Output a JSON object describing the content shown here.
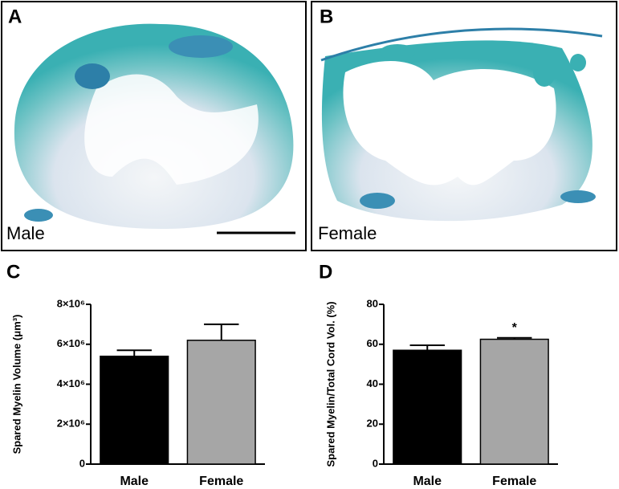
{
  "panels": [
    {
      "letter": "A",
      "label": "Male"
    },
    {
      "letter": "B",
      "label": "Female"
    }
  ],
  "chart_data": [
    {
      "type": "bar",
      "panel": "C",
      "y_label": "Spared Myelin Volume (μm³)",
      "categories": [
        "Male",
        "Female"
      ],
      "values": [
        5400000,
        6200000
      ],
      "errors": [
        300000,
        800000
      ],
      "colors": [
        "#000000",
        "#a6a6a6"
      ],
      "ylim": [
        0,
        8000000
      ],
      "yticks": [
        0,
        {
          "value": 2000000,
          "label": "2×10⁶"
        },
        {
          "value": 4000000,
          "label": "4×10⁶"
        },
        {
          "value": 6000000,
          "label": "6×10⁶"
        },
        {
          "value": 8000000,
          "label": "8×10⁶"
        }
      ]
    },
    {
      "type": "bar",
      "panel": "D",
      "y_label": "Spared Myelin/Total Cord Vol. (%)",
      "categories": [
        "Male",
        "Female"
      ],
      "values": [
        57,
        62.5
      ],
      "errors": [
        2.5,
        0.7
      ],
      "colors": [
        "#000000",
        "#a6a6a6"
      ],
      "ylim": [
        0,
        80
      ],
      "yticks": [
        0,
        20,
        40,
        60,
        80
      ],
      "annotations": [
        {
          "text": "*",
          "category": 1
        }
      ]
    }
  ]
}
